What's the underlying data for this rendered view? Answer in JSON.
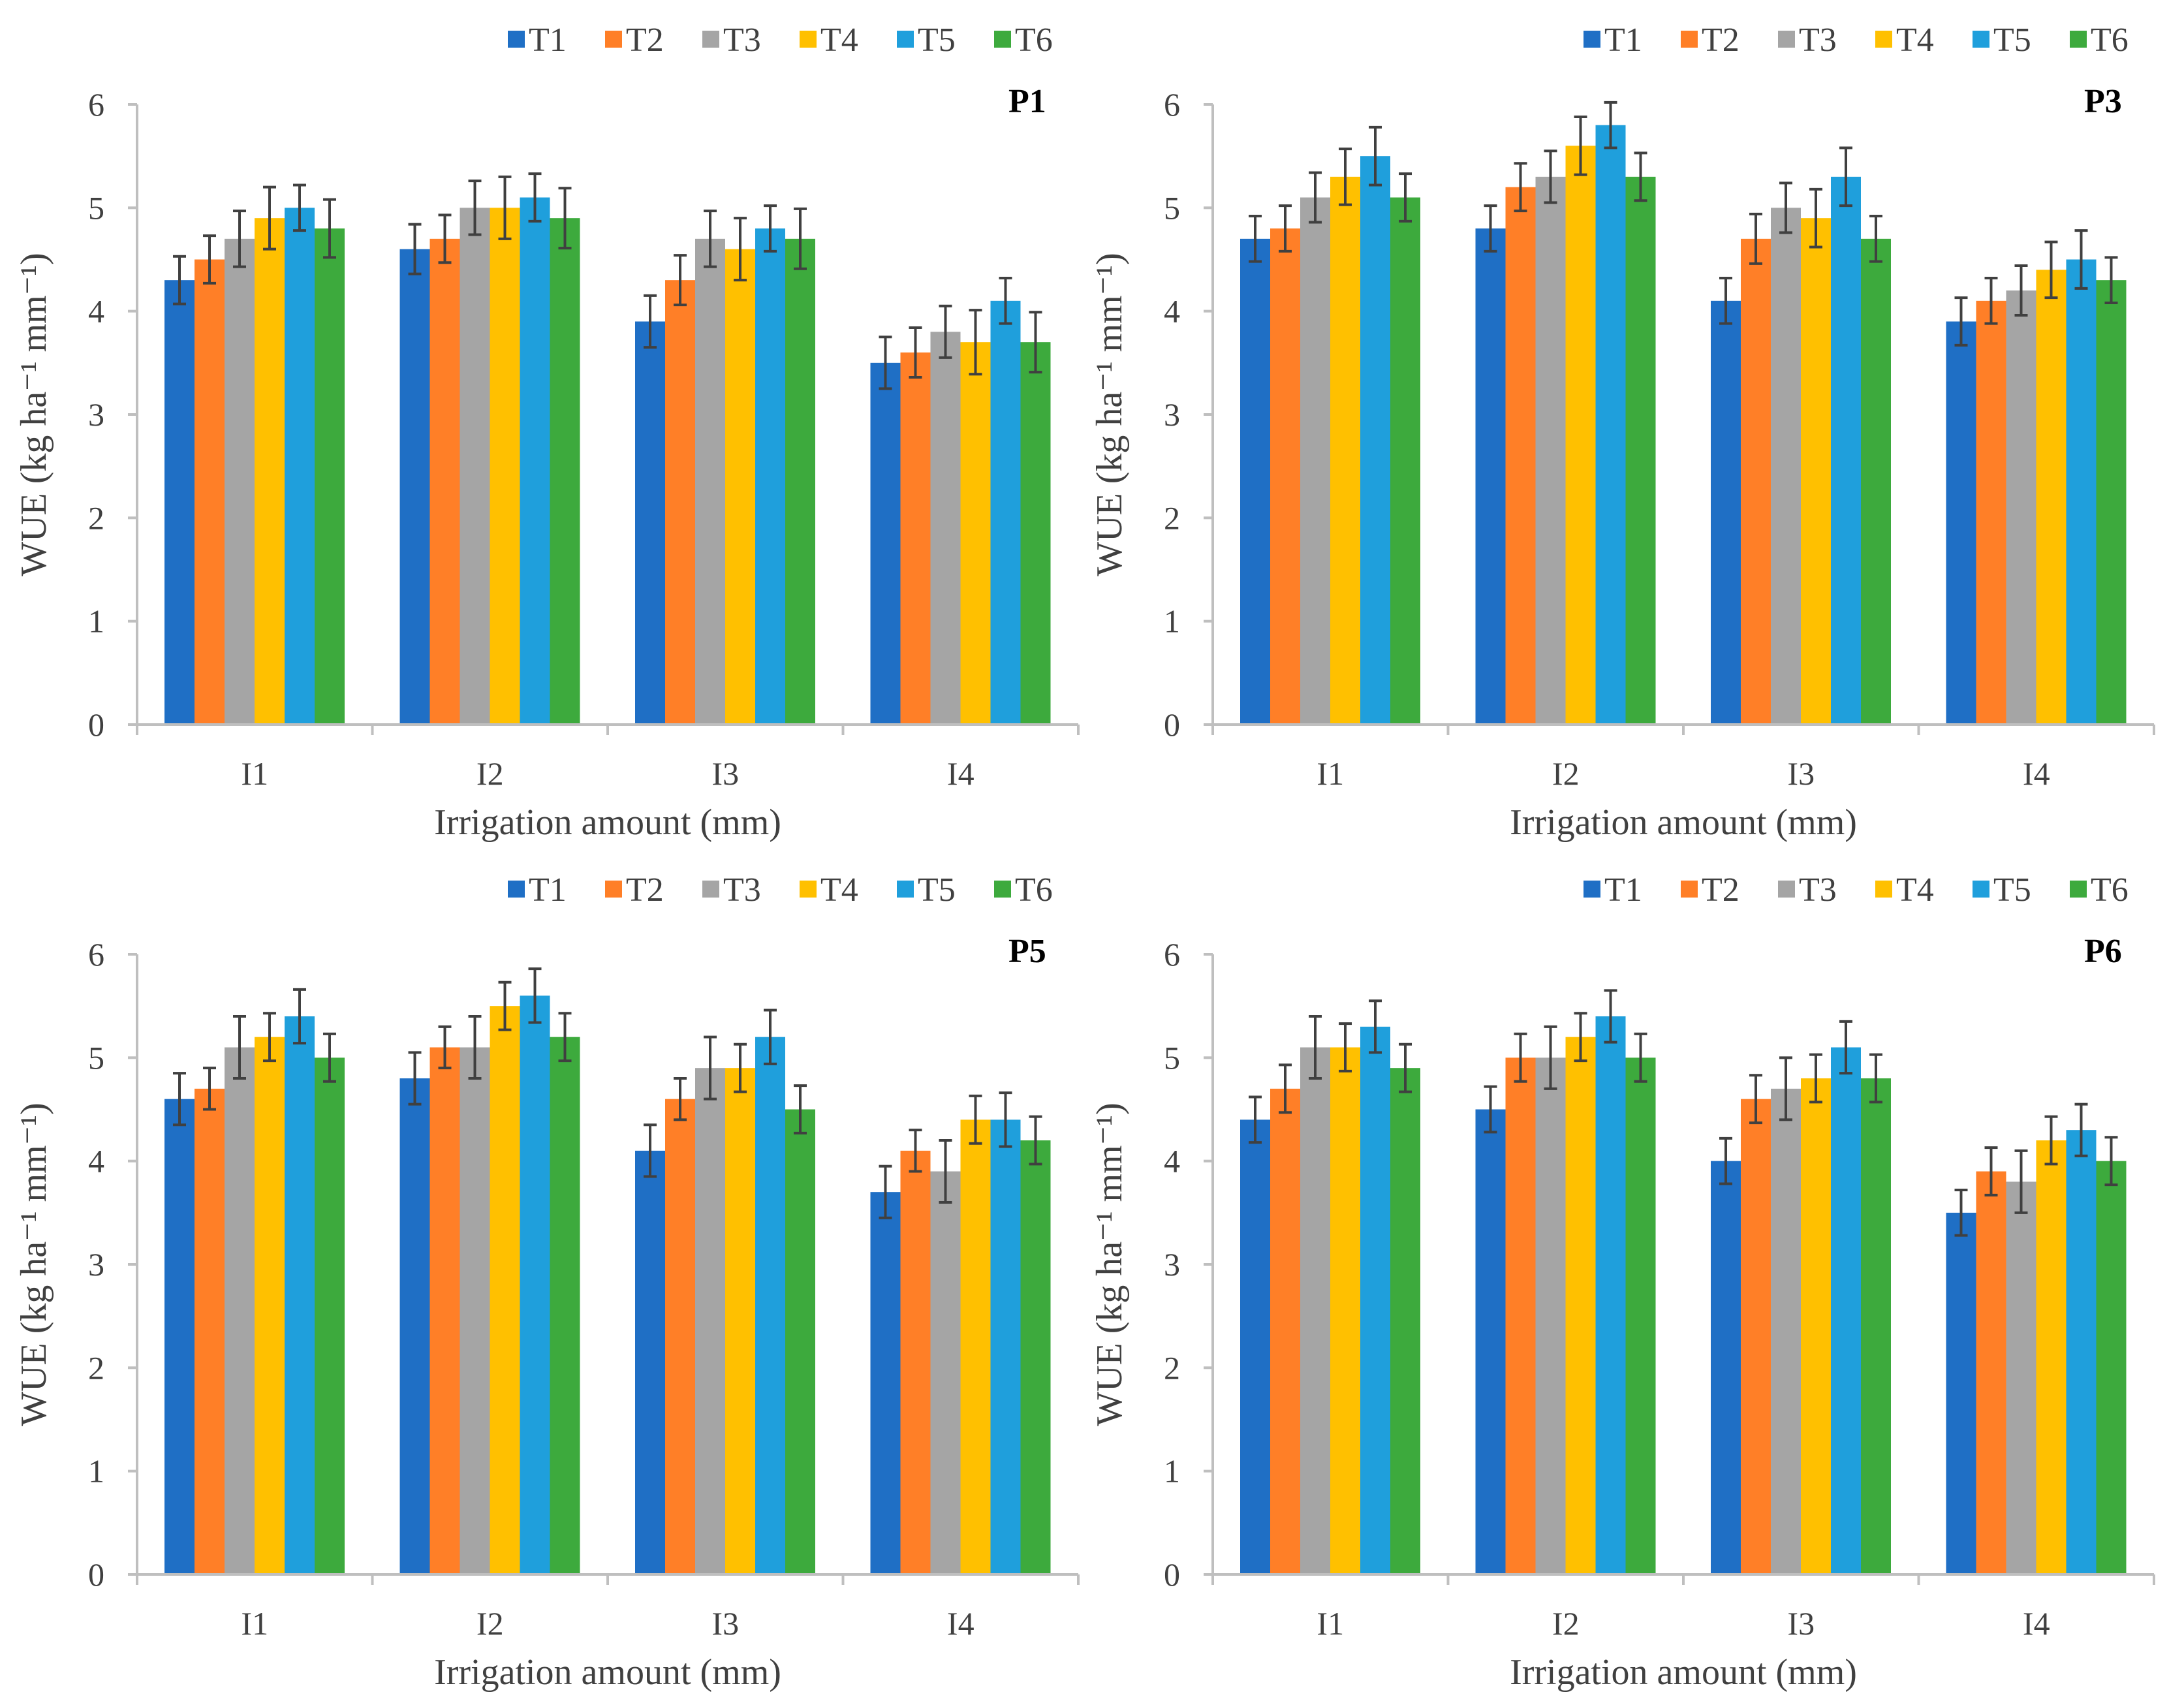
{
  "chart_data": [
    {
      "type": "bar",
      "panel_label": "P1",
      "categories": [
        "I1",
        "I2",
        "I3",
        "I4"
      ],
      "series": [
        {
          "name": "T1",
          "values": [
            4.3,
            4.6,
            3.9,
            3.5
          ],
          "errors": [
            0.23,
            0.24,
            0.25,
            0.25
          ]
        },
        {
          "name": "T2",
          "values": [
            4.5,
            4.7,
            4.3,
            3.6
          ],
          "errors": [
            0.23,
            0.23,
            0.24,
            0.24
          ]
        },
        {
          "name": "T3",
          "values": [
            4.7,
            5.0,
            4.7,
            3.8
          ],
          "errors": [
            0.27,
            0.26,
            0.27,
            0.25
          ]
        },
        {
          "name": "T4",
          "values": [
            4.9,
            5.0,
            4.6,
            3.7
          ],
          "errors": [
            0.3,
            0.3,
            0.3,
            0.31
          ]
        },
        {
          "name": "T5",
          "values": [
            5.0,
            5.1,
            4.8,
            4.1
          ],
          "errors": [
            0.22,
            0.23,
            0.22,
            0.22
          ]
        },
        {
          "name": "T6",
          "values": [
            4.8,
            4.9,
            4.7,
            3.7
          ],
          "errors": [
            0.28,
            0.29,
            0.29,
            0.29
          ]
        }
      ],
      "xlabel": "Irrigation amount (mm)",
      "ylabel": "WUE (kg ha⁻¹ mm⁻¹)",
      "ylim": [
        0,
        6
      ],
      "yticks": [
        "0",
        "1",
        "2",
        "3",
        "4",
        "5",
        "6"
      ],
      "legend": "top-right",
      "grid": false
    },
    {
      "type": "bar",
      "panel_label": "P3",
      "categories": [
        "I1",
        "I2",
        "I3",
        "I4"
      ],
      "series": [
        {
          "name": "T1",
          "values": [
            4.7,
            4.8,
            4.1,
            3.9
          ],
          "errors": [
            0.22,
            0.22,
            0.22,
            0.23
          ]
        },
        {
          "name": "T2",
          "values": [
            4.8,
            5.2,
            4.7,
            4.1
          ],
          "errors": [
            0.22,
            0.23,
            0.24,
            0.22
          ]
        },
        {
          "name": "T3",
          "values": [
            5.1,
            5.3,
            5.0,
            4.2
          ],
          "errors": [
            0.24,
            0.25,
            0.24,
            0.24
          ]
        },
        {
          "name": "T4",
          "values": [
            5.3,
            5.6,
            4.9,
            4.4
          ],
          "errors": [
            0.27,
            0.28,
            0.28,
            0.27
          ]
        },
        {
          "name": "T5",
          "values": [
            5.5,
            5.8,
            5.3,
            4.5
          ],
          "errors": [
            0.28,
            0.22,
            0.28,
            0.28
          ]
        },
        {
          "name": "T6",
          "values": [
            5.1,
            5.3,
            4.7,
            4.3
          ],
          "errors": [
            0.23,
            0.23,
            0.22,
            0.22
          ]
        }
      ],
      "xlabel": "Irrigation amount (mm)",
      "ylabel": "WUE (kg ha⁻¹ mm⁻¹)",
      "ylim": [
        0,
        6
      ],
      "yticks": [
        "0",
        "1",
        "2",
        "3",
        "4",
        "5",
        "6"
      ],
      "legend": "top-right",
      "grid": false
    },
    {
      "type": "bar",
      "panel_label": "P5",
      "categories": [
        "I1",
        "I2",
        "I3",
        "I4"
      ],
      "series": [
        {
          "name": "T1",
          "values": [
            4.6,
            4.8,
            4.1,
            3.7
          ],
          "errors": [
            0.25,
            0.25,
            0.25,
            0.25
          ]
        },
        {
          "name": "T2",
          "values": [
            4.7,
            5.1,
            4.6,
            4.1
          ],
          "errors": [
            0.2,
            0.2,
            0.2,
            0.2
          ]
        },
        {
          "name": "T3",
          "values": [
            5.1,
            5.1,
            4.9,
            3.9
          ],
          "errors": [
            0.3,
            0.3,
            0.3,
            0.3
          ]
        },
        {
          "name": "T4",
          "values": [
            5.2,
            5.5,
            4.9,
            4.4
          ],
          "errors": [
            0.23,
            0.23,
            0.23,
            0.23
          ]
        },
        {
          "name": "T5",
          "values": [
            5.4,
            5.6,
            5.2,
            4.4
          ],
          "errors": [
            0.26,
            0.26,
            0.26,
            0.26
          ]
        },
        {
          "name": "T6",
          "values": [
            5.0,
            5.2,
            4.5,
            4.2
          ],
          "errors": [
            0.23,
            0.23,
            0.23,
            0.23
          ]
        }
      ],
      "xlabel": "Irrigation amount (mm)",
      "ylabel": "WUE (kg ha⁻¹ mm⁻¹)",
      "ylim": [
        0,
        6
      ],
      "yticks": [
        "0",
        "1",
        "2",
        "3",
        "4",
        "5",
        "6"
      ],
      "legend": "top-right",
      "grid": false
    },
    {
      "type": "bar",
      "panel_label": "P6",
      "categories": [
        "I1",
        "I2",
        "I3",
        "I4"
      ],
      "series": [
        {
          "name": "T1",
          "values": [
            4.4,
            4.5,
            4.0,
            3.5
          ],
          "errors": [
            0.22,
            0.22,
            0.22,
            0.22
          ]
        },
        {
          "name": "T2",
          "values": [
            4.7,
            5.0,
            4.6,
            3.9
          ],
          "errors": [
            0.23,
            0.23,
            0.23,
            0.23
          ]
        },
        {
          "name": "T3",
          "values": [
            5.1,
            5.0,
            4.7,
            3.8
          ],
          "errors": [
            0.3,
            0.3,
            0.3,
            0.3
          ]
        },
        {
          "name": "T4",
          "values": [
            5.1,
            5.2,
            4.8,
            4.2
          ],
          "errors": [
            0.23,
            0.23,
            0.23,
            0.23
          ]
        },
        {
          "name": "T5",
          "values": [
            5.3,
            5.4,
            5.1,
            4.3
          ],
          "errors": [
            0.25,
            0.25,
            0.25,
            0.25
          ]
        },
        {
          "name": "T6",
          "values": [
            4.9,
            5.0,
            4.8,
            4.0
          ],
          "errors": [
            0.23,
            0.23,
            0.23,
            0.23
          ]
        }
      ],
      "xlabel": "Irrigation amount (mm)",
      "ylabel": "WUE (kg ha⁻¹ mm⁻¹)",
      "ylim": [
        0,
        6
      ],
      "yticks": [
        "0",
        "1",
        "2",
        "3",
        "4",
        "5",
        "6"
      ],
      "legend": "top-right",
      "grid": false
    }
  ],
  "colors": {
    "T1": "#1F6FC5",
    "T2": "#FF7F27",
    "T3": "#A5A5A5",
    "T4": "#FFC000",
    "T5": "#1F9FDC",
    "T6": "#3DAA3D",
    "axis": "#BFBFBF",
    "error_bar": "#404040"
  }
}
